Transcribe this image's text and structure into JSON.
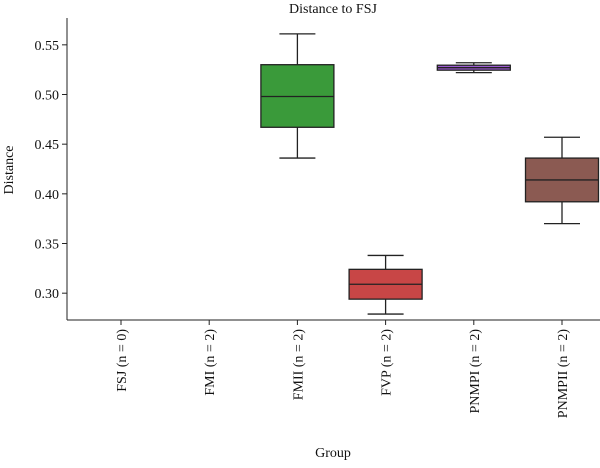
{
  "chart_data": {
    "type": "box",
    "title": "Distance to FSJ",
    "xlabel": "Group",
    "ylabel": "Distance",
    "ylim": [
      0.273,
      0.575
    ],
    "yticks": [
      0.3,
      0.35,
      0.4,
      0.45,
      0.5,
      0.55
    ],
    "ytick_labels": [
      "0.30",
      "0.35",
      "0.40",
      "0.45",
      "0.50",
      "0.55"
    ],
    "categories": [
      "FSJ (n = 0)",
      "FMI (n = 2)",
      "FMII (n = 2)",
      "FVP (n = 2)",
      "PNMPI (n = 2)",
      "PNMPII (n = 2)"
    ],
    "boxes": [
      null,
      null,
      {
        "whisker_low": 0.436,
        "q1": 0.467,
        "median": 0.498,
        "q3": 0.53,
        "whisker_high": 0.561,
        "color": "#3a9a3a"
      },
      {
        "whisker_low": 0.279,
        "q1": 0.294,
        "median": 0.309,
        "q3": 0.324,
        "whisker_high": 0.338,
        "color": "#c84646"
      },
      {
        "whisker_low": 0.522,
        "q1": 0.5245,
        "median": 0.527,
        "q3": 0.5295,
        "whisker_high": 0.532,
        "color": "#9b59d0"
      },
      {
        "whisker_low": 0.37,
        "q1": 0.392,
        "median": 0.414,
        "q3": 0.436,
        "whisker_high": 0.457,
        "color": "#8b5a52"
      }
    ],
    "grid": false,
    "legend": "none"
  }
}
